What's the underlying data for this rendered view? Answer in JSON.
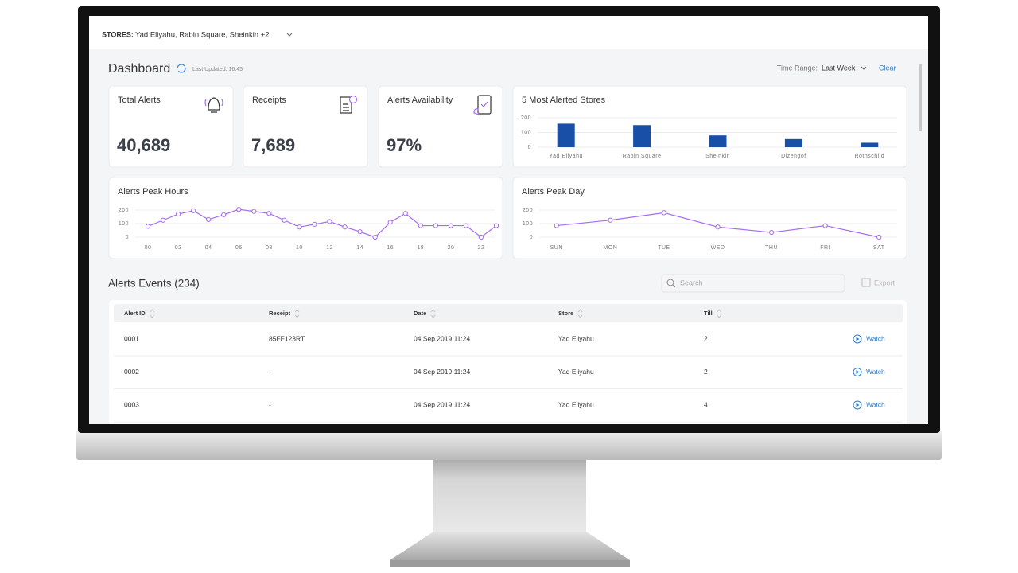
{
  "header": {
    "stores_label": "STORES:",
    "stores": "Yad Eliyahu, Rabin Square, Sheinkin +2"
  },
  "dashboard": {
    "title": "Dashboard",
    "last_updated": "Last Updated: 16:45",
    "time_range_label": "Time Range:",
    "time_range": "Last Week",
    "clear": "Clear"
  },
  "stats": [
    {
      "label": "Total Alerts",
      "value": "40,689"
    },
    {
      "label": "Receipts",
      "value": "7,689"
    },
    {
      "label": "Alerts Availability",
      "value": "97%"
    }
  ],
  "charts": [
    {
      "type": "bar",
      "title": "5 Most Alerted Stores",
      "categories": [
        "Yad Eliyahu",
        "Rabin Square",
        "Sheinkin",
        "Dizengof",
        "Rothschild"
      ],
      "values": [
        160,
        150,
        80,
        55,
        30
      ],
      "color": "#1a4fa8",
      "ylim": [
        0,
        200
      ],
      "yticks": [
        0,
        100,
        200
      ],
      "grid": true
    },
    {
      "type": "line",
      "title": "Alerts Peak Hours",
      "x": [
        0,
        1,
        2,
        3,
        4,
        5,
        6,
        7,
        8,
        9,
        10,
        11,
        12,
        13,
        14,
        15,
        16,
        17,
        18,
        19,
        20,
        21,
        22,
        23
      ],
      "values": [
        80,
        125,
        170,
        195,
        130,
        165,
        205,
        190,
        175,
        125,
        75,
        95,
        115,
        75,
        40,
        0,
        110,
        175,
        85,
        85,
        85,
        85,
        0,
        85
      ],
      "color": "#a66cf0",
      "xlim": [
        0,
        23
      ],
      "xticks": [
        {
          "value": 0,
          "label": "00"
        },
        {
          "value": 2,
          "label": "02"
        },
        {
          "value": 4,
          "label": "04"
        },
        {
          "value": 6,
          "label": "06"
        },
        {
          "value": 8,
          "label": "08"
        },
        10,
        12,
        14,
        16,
        18,
        20,
        22
      ],
      "ylim": [
        0,
        200
      ],
      "yticks": [
        0,
        100,
        200
      ],
      "grid": true
    },
    {
      "type": "line",
      "title": "Alerts Peak Day",
      "categories": [
        "SUN",
        "MON",
        "TUE",
        "WED",
        "THU",
        "FRI",
        "SAT"
      ],
      "values": [
        85,
        125,
        180,
        75,
        35,
        85,
        0
      ],
      "color": "#a66cf0",
      "ylim": [
        0,
        200
      ],
      "yticks": [
        0,
        100,
        200
      ],
      "grid": true
    }
  ],
  "events": {
    "title": "Alerts Events (234)",
    "search_placeholder": "Search",
    "export": "Export",
    "columns": [
      "Alert ID",
      "Receipt",
      "Date",
      "Store",
      "Till"
    ],
    "action": "Watch",
    "rows": [
      [
        "0001",
        "85FF123RT",
        "04 Sep 2019 11:24",
        "Yad Eliyahu",
        "2"
      ],
      [
        "0002",
        "-",
        "04 Sep 2019 11:24",
        "Yad Eliyahu",
        "2"
      ],
      [
        "0003",
        "-",
        "04 Sep 2019 11:24",
        "Yad Eliyahu",
        "4"
      ]
    ]
  }
}
